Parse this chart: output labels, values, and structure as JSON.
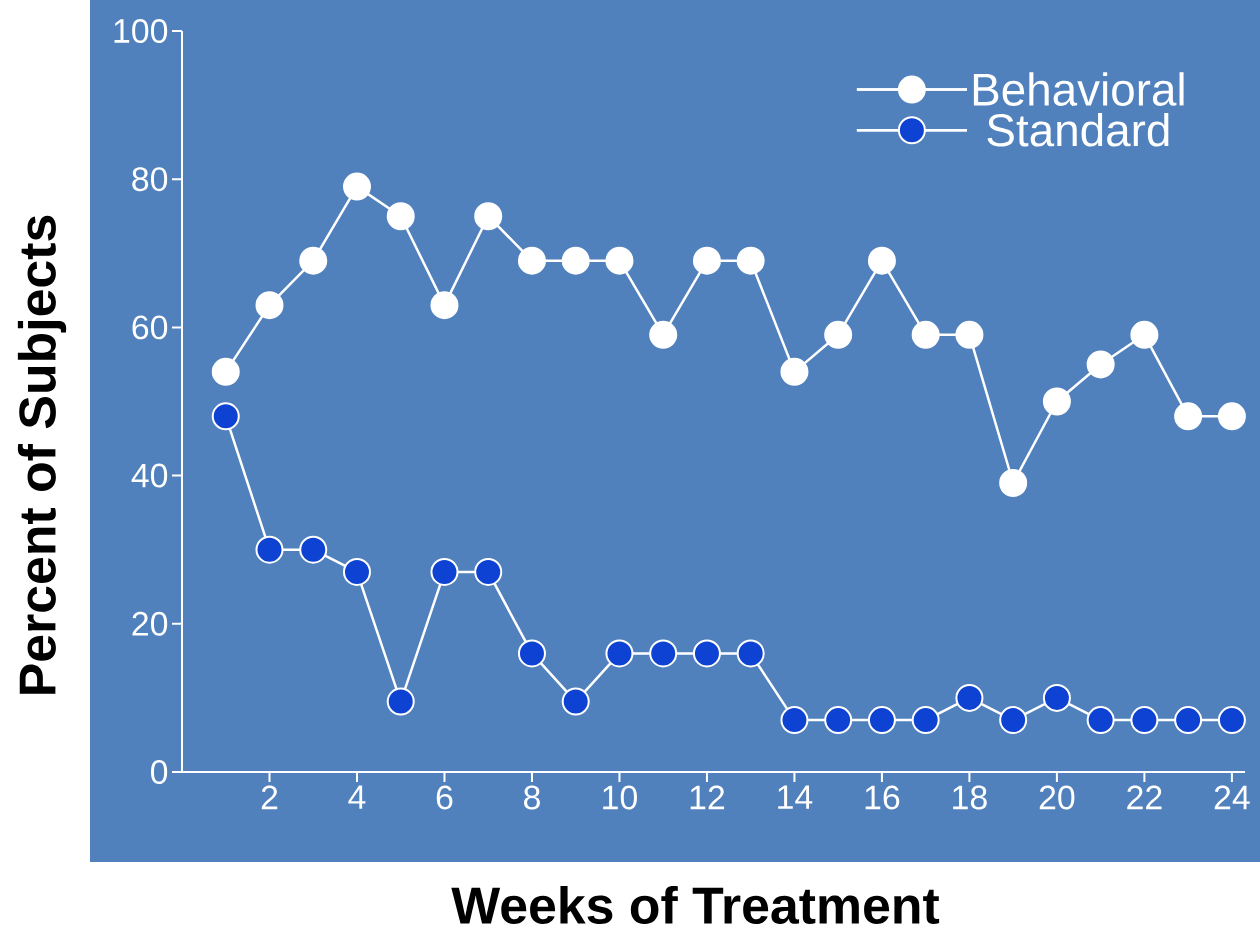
{
  "chart_data": {
    "type": "line",
    "xlabel": "Weeks of Treatment",
    "ylabel": "Percent of Subjects",
    "x": [
      1,
      2,
      3,
      4,
      5,
      6,
      7,
      8,
      9,
      10,
      11,
      12,
      13,
      14,
      15,
      16,
      17,
      18,
      19,
      20,
      21,
      22,
      23,
      24
    ],
    "series": [
      {
        "name": "Behavioral",
        "color": "#ffffff",
        "values": [
          54,
          63,
          69,
          79,
          75,
          63,
          75,
          69,
          69,
          69,
          59,
          69,
          69,
          54,
          59,
          69,
          59,
          59,
          39,
          50,
          55,
          59,
          48,
          48
        ]
      },
      {
        "name": "Standard",
        "color": "#0d42d2",
        "values": [
          48,
          30,
          30,
          27,
          9.5,
          27,
          27,
          16,
          9.5,
          16,
          16,
          16,
          16,
          7,
          7,
          7,
          7,
          10,
          7,
          10,
          7,
          7,
          7,
          7
        ]
      }
    ],
    "xlim": [
      0,
      24.3
    ],
    "ylim": [
      0,
      100
    ],
    "xticks": [
      2,
      4,
      6,
      8,
      10,
      12,
      14,
      16,
      18,
      20,
      22,
      24
    ],
    "yticks": [
      0,
      20,
      40,
      60,
      80,
      100
    ],
    "legend": "top right",
    "marker": "circle",
    "line_style": "solid"
  }
}
